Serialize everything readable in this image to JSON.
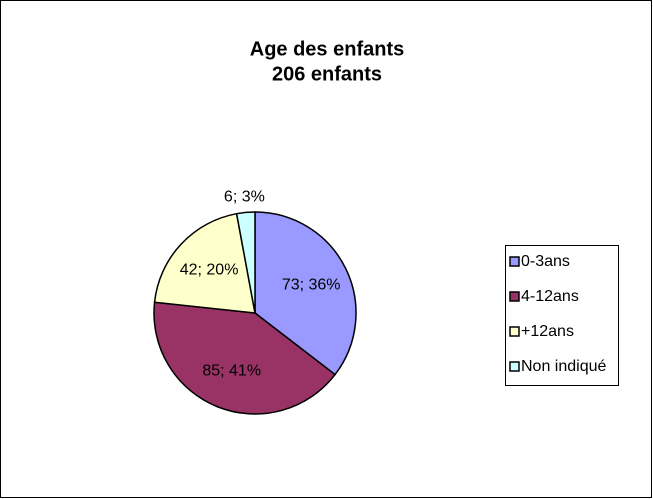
{
  "chart_data": {
    "type": "pie",
    "title": "Age des enfants",
    "subtitle": "206 enfants",
    "categories": [
      "0-3ans",
      "4-12ans",
      "+12ans",
      "Non indiqué"
    ],
    "values": [
      73,
      85,
      42,
      6
    ],
    "value_labels": [
      "73; 36%",
      "85; 41%",
      "42; 20%",
      "6; 3%"
    ],
    "colors": [
      "#9999ff",
      "#993366",
      "#ffffcc",
      "#ccffff"
    ],
    "legend": "right"
  }
}
